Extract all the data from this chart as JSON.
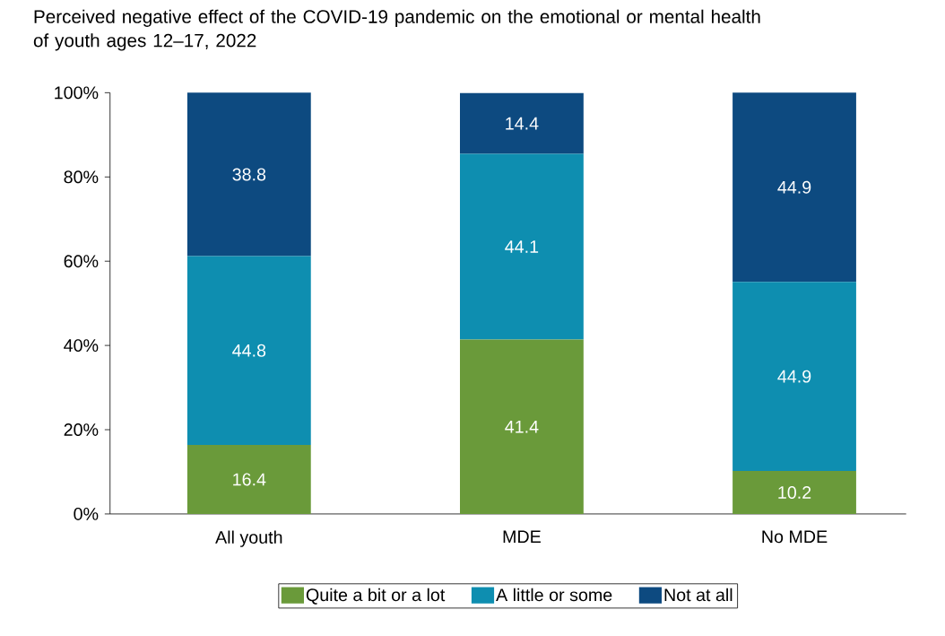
{
  "chart_data": {
    "type": "bar",
    "title": "Perceived negative effect of the COVID-19 pandemic on the emotional or mental health of youth ages 12–17, 2022",
    "categories": [
      "All youth",
      "MDE",
      "No MDE"
    ],
    "series": [
      {
        "name": "Quite a bit or a lot",
        "color": "#6a9a3a",
        "values": [
          16.4,
          41.4,
          10.2
        ]
      },
      {
        "name": "A little or some",
        "color": "#0e8eb0",
        "values": [
          44.8,
          44.1,
          44.9
        ]
      },
      {
        "name": "Not at all",
        "color": "#0d4a80",
        "values": [
          38.8,
          14.4,
          44.9
        ]
      }
    ],
    "stacked": true,
    "data_labels": true,
    "grid": false,
    "legend": "bottom",
    "ylim": [
      0,
      100
    ],
    "yticks": [
      {
        "value": 0,
        "label": "0%"
      },
      {
        "value": 20,
        "label": "20%"
      },
      {
        "value": 40,
        "label": "40%"
      },
      {
        "value": 60,
        "label": "60%"
      },
      {
        "value": 80,
        "label": "80%"
      },
      {
        "value": 100,
        "label": "100%"
      }
    ]
  }
}
